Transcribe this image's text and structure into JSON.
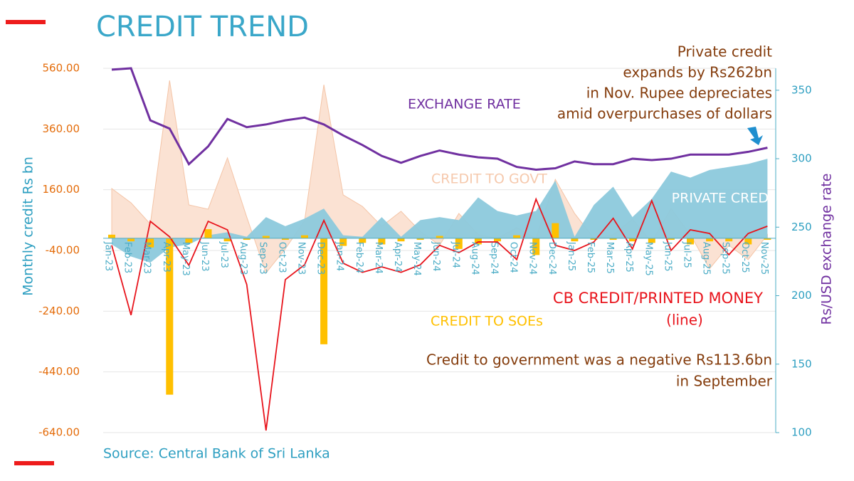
{
  "chart_data": {
    "type": "combo",
    "title": "CREDIT TREND",
    "source": "Source: Central Bank of Sri Lanka",
    "ylabel": "Monthly credit Rs bn",
    "y2label": "Rs/USD exchange rate",
    "categories": [
      "Jan-23",
      "Feb-23",
      "Mar-23",
      "Apr-23",
      "May-23",
      "Jun-23",
      "Jul-23",
      "Aug-23",
      "Sep-23",
      "Oct-23",
      "Nov-23",
      "Dec-23",
      "Jan-24",
      "Feb-24",
      "Mar-24",
      "Apr-24",
      "May-24",
      "Jun-24",
      "Jul-24",
      "Aug-24",
      "Sep-24",
      "Oct-24",
      "Nov-24",
      "Dec-24",
      "Jan-25",
      "Feb-25",
      "Mar-25",
      "Apr-25",
      "May-25",
      "Jun-25",
      "Jul-25",
      "Aug-25",
      "Sep-25",
      "Oct-25",
      "Nov-25"
    ],
    "ylim": [
      -640,
      560
    ],
    "yticks": [
      {
        "value": -640,
        "label": "-640.00"
      },
      {
        "value": -440,
        "label": "-440.00"
      },
      {
        "value": -240,
        "label": "-240.00"
      },
      {
        "value": -40,
        "label": "-40.00"
      },
      {
        "value": 160,
        "label": "160.00"
      },
      {
        "value": 360,
        "label": "360.00"
      },
      {
        "value": 560,
        "label": "560.00"
      }
    ],
    "y2lim": [
      100,
      366
    ],
    "y2ticks": [
      100,
      150,
      200,
      250,
      300,
      350
    ],
    "grid": true,
    "series": [
      {
        "name": "CREDIT TO GOVT",
        "type": "area",
        "color": "#fbe2d3",
        "values": [
          164,
          117,
          47,
          520,
          110,
          96,
          265,
          70,
          -114,
          -35,
          58,
          506,
          143,
          105,
          40,
          89,
          23,
          -23,
          82,
          12,
          0,
          35,
          0,
          194,
          82,
          0,
          12,
          63,
          -12,
          98,
          12,
          -100,
          -23,
          -70,
          12
        ]
      },
      {
        "name": "PRIVATE CRED",
        "type": "area",
        "color": "#8cc9dc",
        "values": [
          -20,
          -60,
          -80,
          -30,
          -20,
          10,
          20,
          5,
          70,
          40,
          65,
          98,
          10,
          5,
          70,
          5,
          60,
          70,
          60,
          135,
          90,
          75,
          90,
          190,
          5,
          110,
          170,
          70,
          130,
          220,
          200,
          225,
          235,
          245,
          262
        ]
      },
      {
        "name": "CREDIT TO SOEs",
        "type": "bar",
        "color": "#ffc000",
        "values": [
          12,
          -10,
          -30,
          -515,
          -15,
          30,
          -10,
          -5,
          8,
          -5,
          10,
          -349,
          -25,
          -15,
          -20,
          -10,
          -5,
          8,
          -35,
          -20,
          -10,
          10,
          -55,
          50,
          -10,
          -5,
          -5,
          -10,
          -15,
          -5,
          -20,
          -10,
          -10,
          -20,
          -5
        ]
      },
      {
        "name": "CB CREDIT/PRINTED MONEY",
        "type": "line",
        "color": "#e8141c",
        "values": [
          -23,
          -253,
          56,
          5,
          -89,
          56,
          28,
          -152,
          -633,
          -136,
          -87,
          59,
          -82,
          -112,
          -94,
          -112,
          -87,
          -23,
          -47,
          -12,
          -12,
          -70,
          129,
          -23,
          -40,
          -12,
          66,
          -35,
          124,
          -40,
          28,
          16,
          -54,
          16,
          40
        ]
      },
      {
        "name": "EXCHANGE RATE",
        "type": "line",
        "axis": "y2",
        "color": "#7030a0",
        "values": [
          365,
          366,
          328,
          322,
          296,
          309,
          329,
          323,
          325,
          328,
          330,
          325,
          317,
          310,
          302,
          297,
          302,
          306,
          303,
          301,
          300,
          294,
          292,
          293,
          298,
          296,
          296,
          300,
          299,
          300,
          303,
          303,
          303,
          305,
          308
        ]
      }
    ],
    "annotations": [
      {
        "lines": [
          "Private credit",
          "expands by Rs262bn",
          "in Nov. Rupee depreciates",
          "amid overpurchases of dollars"
        ],
        "color": "#843c0c"
      },
      {
        "lines": [
          "(line)"
        ],
        "color": "#e8141c"
      },
      {
        "lines": [
          "Credit to government was a negative Rs113.6bn",
          "in September"
        ],
        "color": "#843c0c"
      }
    ]
  }
}
